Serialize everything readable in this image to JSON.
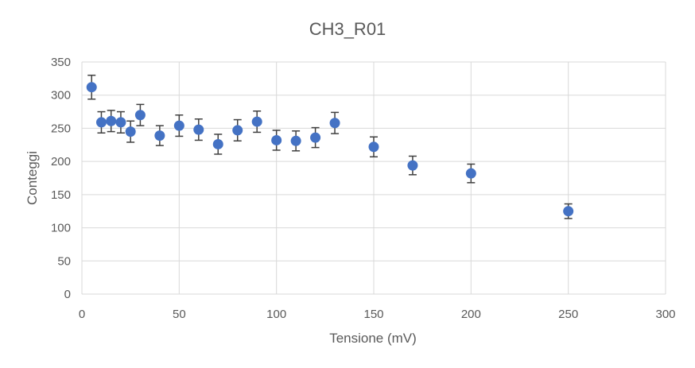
{
  "chart_data": {
    "type": "scatter",
    "title": "CH3_R01",
    "xlabel": "Tensione (mV)",
    "ylabel": "Conteggi",
    "xlim": [
      0,
      300
    ],
    "ylim": [
      0,
      350
    ],
    "xticks": [
      0,
      50,
      100,
      150,
      200,
      250,
      300
    ],
    "yticks": [
      0,
      50,
      100,
      150,
      200,
      250,
      300,
      350
    ],
    "grid": true,
    "legend": "none",
    "error_bars": true,
    "series": [
      {
        "x": [
          5,
          10,
          15,
          20,
          25,
          30,
          40,
          50,
          60,
          70,
          80,
          90,
          100,
          110,
          120,
          130,
          150,
          170,
          200,
          250
        ],
        "y": [
          312,
          259,
          261,
          259,
          245,
          270,
          239,
          254,
          248,
          226,
          247,
          260,
          232,
          231,
          236,
          258,
          222,
          194,
          182,
          125
        ],
        "error": [
          18,
          16,
          16,
          16,
          16,
          16,
          15,
          16,
          16,
          15,
          16,
          16,
          15,
          15,
          15,
          16,
          15,
          14,
          14,
          11
        ]
      }
    ]
  },
  "colors": {
    "marker": "#4472C4",
    "error_bar": "#404040",
    "grid": "#D9D9D9",
    "text": "#595959"
  }
}
